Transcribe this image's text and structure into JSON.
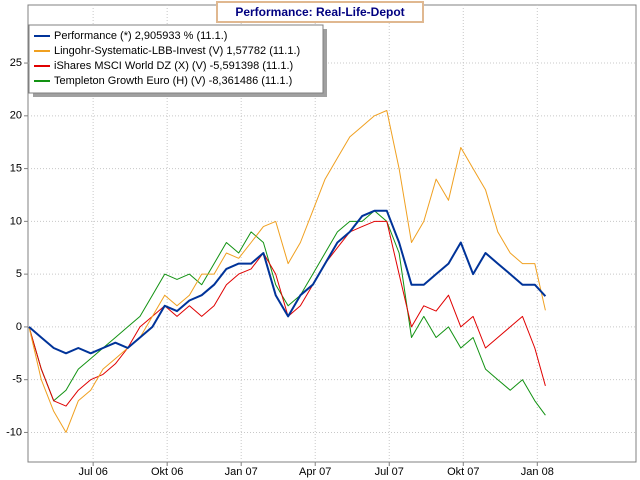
{
  "chart_data": {
    "type": "line",
    "title": "Performance: Real-Life-Depot",
    "x": [
      3.4,
      3.9,
      4.4,
      4.9,
      5.4,
      5.9,
      6.4,
      6.9,
      7.4,
      7.9,
      8.4,
      8.9,
      9.4,
      9.9,
      10.4,
      10.9,
      11.4,
      11.9,
      12.4,
      12.9,
      13.4,
      13.9,
      14.4,
      14.9,
      15.4,
      15.9,
      16.4,
      16.9,
      17.4,
      17.9,
      18.4,
      18.9,
      19.4,
      19.9,
      20.4,
      20.9,
      21.4,
      21.9,
      22.4,
      22.9,
      23.4,
      23.9,
      24.33
    ],
    "series": [
      {
        "name": "Performance (*) 2,905933 % (11.1.)",
        "color": "#003399",
        "width": 2,
        "values": [
          0,
          -1,
          -2,
          -2.5,
          -2,
          -2.5,
          -2,
          -1.5,
          -2,
          -1,
          0,
          2,
          1.5,
          2.5,
          3,
          4,
          5.5,
          6,
          6,
          7,
          3,
          1,
          3,
          4,
          6,
          8,
          9,
          10.5,
          11,
          11,
          8,
          4,
          4,
          5,
          6,
          8,
          5,
          7,
          6,
          5,
          4,
          4,
          2.905933
        ]
      },
      {
        "name": "Lingohr-Systematic-LBB-Invest (V) 1,57782 (11.1.)",
        "color": "#f0a020",
        "width": 1,
        "values": [
          0,
          -5,
          -8,
          -10,
          -7,
          -6,
          -4,
          -3,
          -2,
          -1,
          1,
          3,
          2,
          3,
          5,
          5,
          7,
          6.5,
          8,
          9.5,
          10,
          6,
          8,
          11,
          14,
          16,
          18,
          19,
          20,
          20.5,
          15,
          8,
          10,
          14,
          12,
          17,
          15,
          13,
          9,
          7,
          6,
          6,
          1.57782
        ]
      },
      {
        "name": "iShares MSCI World DZ (X) (V) -5,591398 (11.1.)",
        "color": "#e00000",
        "width": 1,
        "values": [
          0,
          -4,
          -7,
          -7.5,
          -6,
          -5,
          -4.5,
          -3.5,
          -2,
          0,
          1,
          2,
          1,
          2,
          1,
          2,
          4,
          5,
          5.5,
          7,
          5,
          1,
          2,
          4,
          6,
          7.5,
          9,
          9.5,
          10,
          10,
          5,
          0,
          2,
          1.5,
          3,
          0,
          1,
          -2,
          -1,
          0,
          1,
          -2,
          -5.591398
        ]
      },
      {
        "name": "Templeton Growth Euro (H) (V) -8,361486 (11.1.)",
        "color": "#129212",
        "width": 1,
        "values": [
          0,
          -4,
          -7,
          -6,
          -4,
          -3,
          -2,
          -1,
          0,
          1,
          3,
          5,
          4.5,
          5,
          4,
          6,
          8,
          7,
          9,
          8,
          4,
          2,
          3,
          5,
          7,
          9,
          10,
          10,
          11,
          10,
          7,
          -1,
          1,
          -1,
          0,
          -2,
          -1,
          -4,
          -5,
          -6,
          -5,
          -7,
          -8.361486
        ]
      }
    ],
    "xlim": [
      3.36,
      28
    ],
    "xticks": [
      {
        "value": 6,
        "label": "Jul 06"
      },
      {
        "value": 9,
        "label": "Okt 06"
      },
      {
        "value": 12,
        "label": "Jan 07"
      },
      {
        "value": 15,
        "label": "Apr 07"
      },
      {
        "value": 18,
        "label": "Jul 07"
      },
      {
        "value": 21,
        "label": "Okt 07"
      },
      {
        "value": 24,
        "label": "Jan 08"
      }
    ],
    "ylim": [
      -12.8,
      30.5
    ],
    "yticks": [
      -10,
      -5,
      0,
      5,
      10,
      15,
      20,
      25
    ],
    "grid": true,
    "legend": "upper-left"
  }
}
